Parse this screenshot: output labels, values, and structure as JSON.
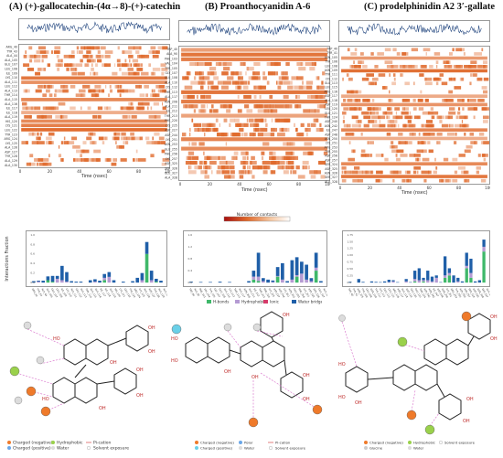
{
  "panels": [
    {
      "title": "(A) (+)-gallocatechin-(4α→8)-(+)-catechin",
      "xlabel": "Time (nsec)",
      "residues": [
        "ARG_40",
        "TYR_43",
        "ALA_44",
        "ALA_105",
        "GLU_107",
        "LEU_108",
        "ILE_109",
        "LYS_110",
        "ALA_111",
        "LEU_112",
        "ALA_113",
        "THR_114",
        "ALA_115",
        "ALA_116",
        "ILE_117",
        "ILE_118",
        "ALA_119",
        "HIS_120",
        "LYS_121",
        "LEU_122",
        "TYR_123",
        "ARG_124",
        "LYS_125",
        "ALA_126",
        "ASP_127",
        "TYR_128",
        "ALA_129",
        "ALA_130"
      ],
      "bar_residues": [
        "ARG_40",
        "TYR_43",
        "ALA_44",
        "ALA_105",
        "GLU_107",
        "LEU_108",
        "ILE_109",
        "LYS_110",
        "ALA_111",
        "LEU_112",
        "ALA_113",
        "THR_114",
        "ALA_115",
        "ALA_116",
        "ILE_117",
        "ILE_118",
        "ALA_119",
        "HIS_120",
        "LYS_121",
        "LEU_122",
        "TYR_123",
        "ARG_124",
        "LYS_125",
        "ALA_126",
        "ASP_127",
        "TYR_128",
        "ALA_129",
        "ALA_130"
      ],
      "bars": [
        {
          "hb": 0.0,
          "hp": 0.0,
          "wb": 0.03
        },
        {
          "hb": 0.0,
          "hp": 0.02,
          "wb": 0.02
        },
        {
          "hb": 0.0,
          "hp": 0.0,
          "wb": 0.04
        },
        {
          "hb": 0.05,
          "hp": 0.0,
          "wb": 0.08
        },
        {
          "hb": 0.02,
          "hp": 0.0,
          "wb": 0.12
        },
        {
          "hb": 0.0,
          "hp": 0.08,
          "wb": 0.06
        },
        {
          "hb": 0.0,
          "hp": 0.05,
          "wb": 0.3
        },
        {
          "hb": 0.0,
          "hp": 0.02,
          "wb": 0.2
        },
        {
          "hb": 0.0,
          "hp": 0.0,
          "wb": 0.03
        },
        {
          "hb": 0.0,
          "hp": 0.0,
          "wb": 0.02
        },
        {
          "hb": 0.0,
          "hp": 0.0,
          "wb": 0.02
        },
        {
          "hb": 0.0,
          "hp": 0.0,
          "wb": 0.0
        },
        {
          "hb": 0.0,
          "hp": 0.0,
          "wb": 0.05
        },
        {
          "hb": 0.0,
          "hp": 0.02,
          "wb": 0.05
        },
        {
          "hb": 0.0,
          "hp": 0.0,
          "wb": 0.04
        },
        {
          "hb": 0.05,
          "hp": 0.05,
          "wb": 0.08
        },
        {
          "hb": 0.0,
          "hp": 0.12,
          "wb": 0.1
        },
        {
          "hb": 0.0,
          "hp": 0.0,
          "wb": 0.05
        },
        {
          "hb": 0.0,
          "hp": 0.0,
          "wb": 0.0
        },
        {
          "hb": 0.0,
          "hp": 0.0,
          "wb": 0.02
        },
        {
          "hb": 0.0,
          "hp": 0.0,
          "wb": 0.0
        },
        {
          "hb": 0.0,
          "hp": 0.0,
          "wb": 0.03
        },
        {
          "hb": 0.0,
          "hp": 0.0,
          "wb": 0.1
        },
        {
          "hb": 0.0,
          "hp": 0.05,
          "wb": 0.15
        },
        {
          "hb": 0.6,
          "hp": 0.0,
          "wb": 0.25
        },
        {
          "hb": 0.0,
          "hp": 0.05,
          "wb": 0.2
        },
        {
          "hb": 0.02,
          "hp": 0.0,
          "wb": 0.06
        },
        {
          "hb": 0.0,
          "hp": 0.0,
          "wb": 0.04
        }
      ],
      "ymax": 1.0,
      "yticks": [
        "0.0",
        "0.2",
        "0.4",
        "0.6",
        "0.8",
        "1.0"
      ],
      "legend": [
        "Charged (negative)",
        "Charged (positive)",
        "Hydrophobic",
        "Water",
        "Pi-cation",
        "Solvent exposure"
      ]
    },
    {
      "title": "(B) Proanthocyanidin A-6",
      "xlabel": "Time (nsec)",
      "residues": [
        "TRP_40",
        "ALA_90",
        "PHE_103",
        "VAL_104",
        "TYR_105",
        "GLY_107",
        "GLU_108",
        "ALA_110",
        "LYS_112",
        "THR_113",
        "ALA_117",
        "ASN_208",
        "ALA_211",
        "ILE_212",
        "THR_213",
        "PHE_220",
        "LYS_225",
        "ASP_227",
        "ASP_244",
        "LYS_251",
        "ASN_253",
        "GLU_255",
        "PHE_256",
        "LYS_257",
        "ASP_325",
        "SER_326",
        "GLU_327",
        "ALA_328"
      ],
      "bar_residues": [
        "TRP_40",
        "ALA_90",
        "PHE_103",
        "VAL_104",
        "TYR_105",
        "GLY_107",
        "GLU_108",
        "ALA_110",
        "LYS_112",
        "THR_113",
        "ALA_117",
        "ASN_208",
        "ALA_211",
        "ILE_212",
        "THR_213",
        "PHE_220",
        "LYS_225",
        "ASP_227",
        "ASP_244",
        "LYS_251",
        "ASN_253",
        "GLU_255",
        "PHE_256",
        "LYS_257",
        "ASP_325",
        "SER_326",
        "GLU_327",
        "ALA_328"
      ],
      "bars": [
        {
          "hb": 0.0,
          "hp": 0.0,
          "wb": 0.03
        },
        {
          "hb": 0.0,
          "hp": 0.0,
          "wb": 0.0
        },
        {
          "hb": 0.0,
          "hp": 0.0,
          "wb": 0.02
        },
        {
          "hb": 0.0,
          "hp": 0.0,
          "wb": 0.0
        },
        {
          "hb": 0.0,
          "hp": 0.0,
          "wb": 0.02
        },
        {
          "hb": 0.0,
          "hp": 0.0,
          "wb": 0.0
        },
        {
          "hb": 0.0,
          "hp": 0.0,
          "wb": 0.03
        },
        {
          "hb": 0.0,
          "hp": 0.0,
          "wb": 0.0
        },
        {
          "hb": 0.0,
          "hp": 0.0,
          "wb": 0.02
        },
        {
          "hb": 0.0,
          "hp": 0.0,
          "wb": 0.0
        },
        {
          "hb": 0.0,
          "hp": 0.0,
          "wb": 0.0
        },
        {
          "hb": 0.0,
          "hp": 0.0,
          "wb": 0.0
        },
        {
          "hb": 0.0,
          "hp": 0.0,
          "wb": 0.05
        },
        {
          "hb": 0.1,
          "hp": 0.1,
          "wb": 0.2
        },
        {
          "hb": 0.05,
          "hp": 0.15,
          "wb": 0.8
        },
        {
          "hb": 0.0,
          "hp": 0.05,
          "wb": 0.1
        },
        {
          "hb": 0.0,
          "hp": 0.0,
          "wb": 0.1
        },
        {
          "hb": 0.0,
          "hp": 0.02,
          "wb": 0.05
        },
        {
          "hb": 0.2,
          "hp": 0.02,
          "wb": 0.3
        },
        {
          "hb": 0.0,
          "hp": 0.1,
          "wb": 0.55
        },
        {
          "hb": 0.0,
          "hp": 0.0,
          "wb": 0.05
        },
        {
          "hb": 0.0,
          "hp": 0.1,
          "wb": 0.65
        },
        {
          "hb": 0.2,
          "hp": 0.05,
          "wb": 0.6
        },
        {
          "hb": 0.0,
          "hp": 0.3,
          "wb": 0.4
        },
        {
          "hb": 0.0,
          "hp": 0.1,
          "wb": 0.5
        },
        {
          "hb": 0.0,
          "hp": 0.05,
          "wb": 0.1
        },
        {
          "hb": 0.4,
          "hp": 0.1,
          "wb": 0.5
        },
        {
          "hb": 0.0,
          "hp": 0.0,
          "wb": 0.05
        }
      ],
      "ymax": 1.6,
      "yticks": [
        "0.0",
        "0.4",
        "0.8",
        "1.2",
        "1.6"
      ],
      "legend": [
        "Charged (negative)",
        "Charged (positive)",
        "Polar",
        "Water",
        "Pi-cation",
        "Solvent exposure"
      ]
    },
    {
      "title": "(C) prodelphinidin A2 3′-gallate",
      "xlabel": "Time (nsec)",
      "residues": [
        "TRP_40",
        "TYR_41",
        "ASN_105",
        "TYR_106",
        "LEU_108",
        "ASN_109",
        "TYR_111",
        "LYS_112",
        "GLU_113",
        "LEU_115",
        "ARG_116",
        "ASP_117",
        "ALA_118",
        "ASP_119",
        "LEU_120",
        "GLU_121",
        "THR_124",
        "ASP_240",
        "ASN_242",
        "ILE_247",
        "ASP_248",
        "ASN_250",
        "LYS_251",
        "ARG_253",
        "TYR_255",
        "ASP_256",
        "ASP_257",
        "SER_324",
        "ASP_325",
        "ASN_326",
        "SER_327",
        "ALA_328"
      ],
      "bar_residues": [
        "TRP_40",
        "TYR_41",
        "ASN_105",
        "TYR_106",
        "LEU_108",
        "ASN_109",
        "TYR_111",
        "LYS_112",
        "GLU_113",
        "LEU_115",
        "ARG_116",
        "ASP_117",
        "ALA_118",
        "ASP_119",
        "LEU_120",
        "GLU_121",
        "THR_124",
        "ASP_240",
        "ASN_242",
        "ILE_247",
        "ASP_248",
        "ASN_250",
        "LYS_251",
        "ARG_253",
        "TYR_255",
        "ASP_256",
        "ASP_257",
        "SER_324",
        "ASP_325",
        "ASN_326",
        "SER_327",
        "ALA_328"
      ],
      "bars": [
        {
          "hb": 0.0,
          "hp": 0.0,
          "wb": 0.03
        },
        {
          "hb": 0.0,
          "hp": 0.0,
          "wb": 0.0
        },
        {
          "hb": 0.0,
          "hp": 0.0,
          "wb": 0.15
        },
        {
          "hb": 0.0,
          "hp": 0.0,
          "wb": 0.03
        },
        {
          "hb": 0.0,
          "hp": 0.0,
          "wb": 0.0
        },
        {
          "hb": 0.0,
          "hp": 0.0,
          "wb": 0.05
        },
        {
          "hb": 0.0,
          "hp": 0.0,
          "wb": 0.03
        },
        {
          "hb": 0.0,
          "hp": 0.0,
          "wb": 0.02
        },
        {
          "hb": 0.0,
          "hp": 0.0,
          "wb": 0.05
        },
        {
          "hb": 0.0,
          "hp": 0.02,
          "wb": 0.1
        },
        {
          "hb": 0.0,
          "hp": 0.05,
          "wb": 0.05
        },
        {
          "hb": 0.0,
          "hp": 0.0,
          "wb": 0.02
        },
        {
          "hb": 0.0,
          "hp": 0.0,
          "wb": 0.0
        },
        {
          "hb": 0.0,
          "hp": 0.05,
          "wb": 0.1
        },
        {
          "hb": 0.0,
          "hp": 0.0,
          "wb": 0.02
        },
        {
          "hb": 0.05,
          "hp": 0.1,
          "wb": 0.35
        },
        {
          "hb": 0.0,
          "hp": 0.1,
          "wb": 0.5
        },
        {
          "hb": 0.05,
          "hp": 0.05,
          "wb": 0.1
        },
        {
          "hb": 0.0,
          "hp": 0.1,
          "wb": 0.4
        },
        {
          "hb": 0.0,
          "hp": 0.05,
          "wb": 0.2
        },
        {
          "hb": 0.0,
          "hp": 0.2,
          "wb": 0.1
        },
        {
          "hb": 0.0,
          "hp": 0.0,
          "wb": 0.02
        },
        {
          "hb": 0.2,
          "hp": 0.1,
          "wb": 0.8
        },
        {
          "hb": 0.3,
          "hp": 0.1,
          "wb": 0.2
        },
        {
          "hb": 0.0,
          "hp": 0.0,
          "wb": 0.3
        },
        {
          "hb": 0.0,
          "hp": 0.05,
          "wb": 0.15
        },
        {
          "hb": 0.0,
          "hp": 0.0,
          "wb": 0.05
        },
        {
          "hb": 0.6,
          "hp": 0.1,
          "wb": 0.55
        },
        {
          "hb": 0.2,
          "hp": 0.2,
          "wb": 0.6
        },
        {
          "hb": 0.0,
          "hp": 0.0,
          "wb": 0.05
        },
        {
          "hb": 0.0,
          "hp": 0.0,
          "wb": 0.1
        },
        {
          "hb": 1.3,
          "hp": 0.2,
          "wb": 0.3
        }
      ],
      "ymax": 2.0,
      "yticks": [
        "0.0",
        "0.25",
        "0.50",
        "0.75",
        "1.00",
        "1.25",
        "1.50",
        "1.75"
      ],
      "legend": [
        "Charged (negative)",
        "Hydrophobic",
        "Water",
        "Solvent exposure",
        "Glycine"
      ]
    }
  ],
  "shared": {
    "colorbar_label": "Number of contacts",
    "bar_ylabel": "Interactions Fraction",
    "bar_legend": [
      "H-bonds",
      "Hydrophobic",
      "Ionic",
      "Water bridges"
    ],
    "bar_colors": {
      "hb": "#3fb86a",
      "hp": "#b59bd3",
      "ionic": "#d63a6a",
      "wb": "#1f5fa8"
    },
    "heat_color": "#e06a2c",
    "tl_color": "#1a3f7a",
    "tl_ylabel": "Total contacts",
    "ticks": [
      "0",
      "20",
      "40",
      "60",
      "80",
      "100"
    ]
  }
}
